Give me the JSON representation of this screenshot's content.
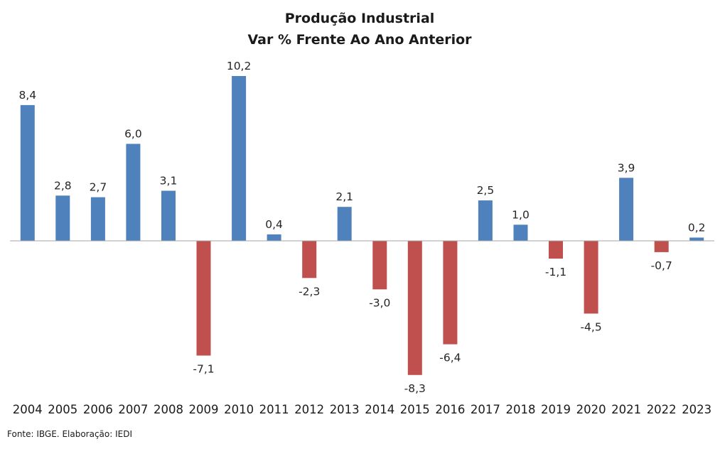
{
  "chart_data": {
    "type": "bar",
    "title": "Produção Industrial",
    "subtitle": "Var % Frente Ao Ano Anterior",
    "categories": [
      "2004",
      "2005",
      "2006",
      "2007",
      "2008",
      "2009",
      "2010",
      "2011",
      "2012",
      "2013",
      "2014",
      "2015",
      "2016",
      "2017",
      "2018",
      "2019",
      "2020",
      "2021",
      "2022",
      "2023"
    ],
    "values": [
      8.4,
      2.8,
      2.7,
      6.0,
      3.1,
      -7.1,
      10.2,
      0.4,
      -2.3,
      2.1,
      -3.0,
      -8.3,
      -6.4,
      2.5,
      1.0,
      -1.1,
      -4.5,
      3.9,
      -0.7,
      0.2
    ],
    "value_labels": [
      "8,4",
      "2,8",
      "2,7",
      "6,0",
      "3,1",
      "-7,1",
      "10,2",
      "0,4",
      "-2,3",
      "2,1",
      "-3,0",
      "-8,3",
      "-6,4",
      "2,5",
      "1,0",
      "-1,1",
      "-4,5",
      "3,9",
      "-0,7",
      "0,2"
    ],
    "colors": {
      "positive": "#4f81bd",
      "negative": "#c0504d",
      "axis": "#a6a6a6"
    },
    "grid": false,
    "legend": "none",
    "xlabel": "",
    "ylabel": ""
  },
  "source": "Fonte: IBGE. Elaboração: IEDI"
}
